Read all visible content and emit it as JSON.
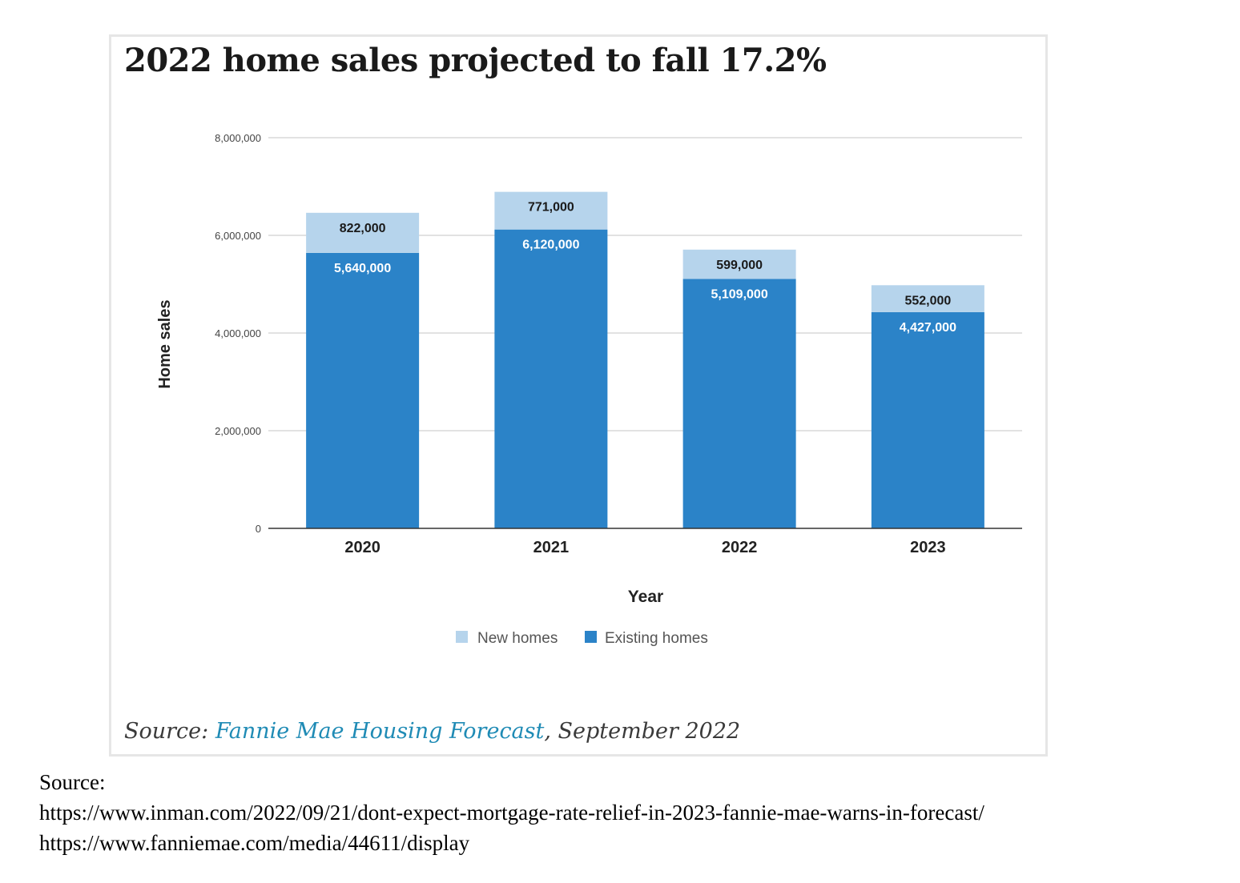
{
  "chart_data": {
    "type": "bar",
    "stacked": true,
    "title": "2022 home sales projected to fall 17.2%",
    "xlabel": "Year",
    "ylabel": "Home sales",
    "ylim": [
      0,
      8000000
    ],
    "yticks": [
      0,
      2000000,
      4000000,
      6000000,
      8000000
    ],
    "ytick_labels": [
      "0",
      "2,000,000",
      "4,000,000",
      "6,000,000",
      "8,000,000"
    ],
    "categories": [
      "2020",
      "2021",
      "2022",
      "2023"
    ],
    "series": [
      {
        "name": "Existing homes",
        "color": "#2b83c8",
        "label_color": "#ffffff",
        "values": [
          5640000,
          6120000,
          5109000,
          4427000
        ],
        "value_labels": [
          "5,640,000",
          "6,120,000",
          "5,109,000",
          "4,427,000"
        ]
      },
      {
        "name": "New homes",
        "color": "#b6d4ec",
        "label_color": "#1a1a1a",
        "values": [
          822000,
          771000,
          599000,
          552000
        ],
        "value_labels": [
          "822,000",
          "771,000",
          "599,000",
          "552,000"
        ]
      }
    ],
    "legend": [
      "New homes",
      "Existing homes"
    ],
    "legend_position": "bottom-center",
    "grid": true
  },
  "source_caption": {
    "prefix": "Source: ",
    "link_text": "Fannie Mae Housing Forecast",
    "suffix": ", September 2022"
  },
  "footer": {
    "label": "Source:",
    "url1": "https://www.inman.com/2022/09/21/dont-expect-mortgage-rate-relief-in-2023-fannie-mae-warns-in-forecast/",
    "url2": "https://www.fanniemae.com/media/44611/display"
  }
}
